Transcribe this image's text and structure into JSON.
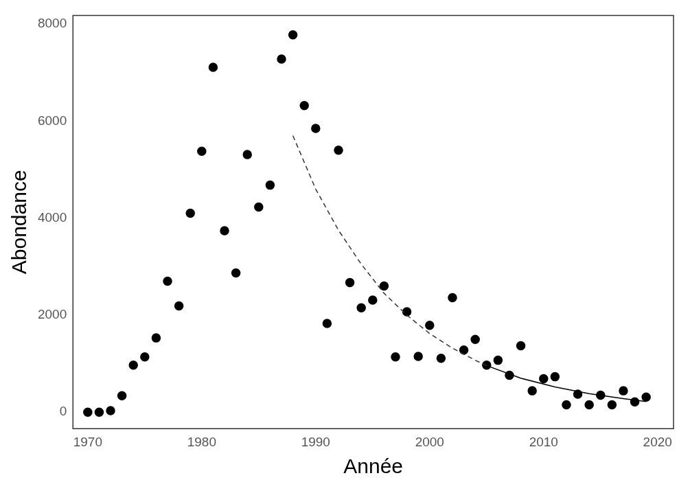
{
  "chart_data": {
    "type": "scatter",
    "xlabel": "Année",
    "ylabel": "Abondance",
    "xlim": [
      1968.7,
      2021.4
    ],
    "ylim": [
      -340,
      8180
    ],
    "xticks": [
      1970,
      1980,
      1990,
      2000,
      2010,
      2020
    ],
    "yticks": [
      0,
      2000,
      4000,
      6000,
      8000
    ],
    "grid": false,
    "legend": false,
    "marker": "circle",
    "series": [
      {
        "type": "scatter",
        "color": "#000000",
        "x": [
          1970,
          1971,
          1972,
          1973,
          1974,
          1975,
          1976,
          1977,
          1978,
          1979,
          1980,
          1981,
          1982,
          1983,
          1984,
          1985,
          1986,
          1987,
          1988,
          1989,
          1990,
          1991,
          1992,
          1993,
          1994,
          1995,
          1996,
          1997,
          1998,
          1999,
          2000,
          2001,
          2002,
          2003,
          2004,
          2005,
          2006,
          2007,
          2008,
          2009,
          2010,
          2011,
          2012,
          2013,
          2014,
          2015,
          2016,
          2017,
          2018,
          2019
        ],
        "values": [
          0,
          0,
          30,
          340,
          970,
          1140,
          1530,
          2700,
          2190,
          4100,
          5380,
          7110,
          3740,
          2870,
          5310,
          4230,
          4680,
          7280,
          7780,
          6320,
          5850,
          1830,
          5400,
          2670,
          2150,
          2310,
          2600,
          1140,
          2070,
          1150,
          1790,
          1110,
          2360,
          1280,
          1500,
          970,
          1070,
          760,
          1370,
          440,
          690,
          730,
          150,
          370,
          150,
          350,
          150,
          440,
          210,
          310
        ]
      },
      {
        "type": "line",
        "color": "#333333",
        "line_style": "dashed",
        "marker": "none",
        "x": [
          1988,
          1990,
          1992,
          1994,
          1996,
          1998,
          2000,
          2002,
          2004,
          2005
        ],
        "values": [
          5700,
          4600,
          3750,
          3050,
          2450,
          2000,
          1620,
          1320,
          1070,
          960
        ]
      },
      {
        "type": "line",
        "color": "#000000",
        "line_style": "solid",
        "marker": "none",
        "x": [
          2005,
          2008,
          2011,
          2014,
          2017,
          2019
        ],
        "values": [
          960,
          700,
          520,
          380,
          280,
          220
        ]
      }
    ]
  }
}
